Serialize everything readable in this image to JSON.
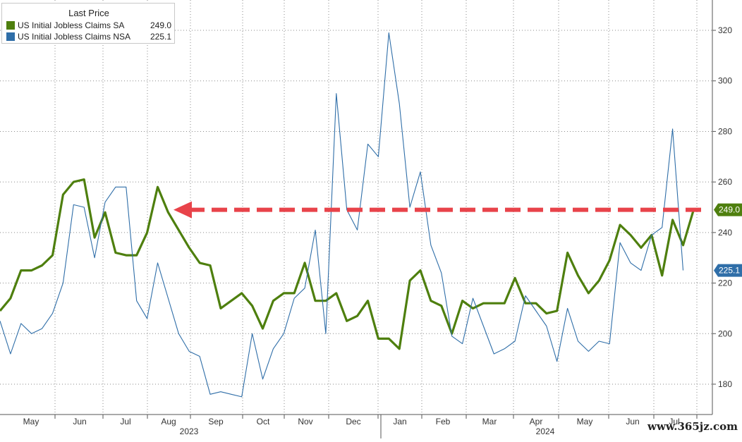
{
  "chart_data": {
    "type": "line",
    "legend": {
      "title": "Last Price",
      "entries": [
        {
          "name": "US Initial Jobless Claims SA",
          "value": "249.0",
          "color": "#4e7f0e"
        },
        {
          "name": "US Initial Jobless Claims NSA",
          "value": "225.1",
          "color": "#2f6ea8"
        }
      ]
    },
    "y_ticks": [
      180,
      200,
      220,
      240,
      260,
      280,
      300,
      320
    ],
    "ylim": [
      168,
      332
    ],
    "x_month_labels": [
      "May",
      "Jun",
      "Jul",
      "Aug",
      "Sep",
      "Oct",
      "Nov",
      "Dec",
      "Jan",
      "Feb",
      "Mar",
      "Apr",
      "May",
      "Jun",
      "Jul"
    ],
    "x_year_labels": [
      "2023",
      "2024"
    ],
    "grid": true,
    "series": [
      {
        "name": "US Initial Jobless Claims SA",
        "last_value_label": "249.0",
        "color": "#4e7f0e",
        "values": [
          209,
          214,
          225,
          225,
          227,
          231,
          255,
          260,
          261,
          238,
          248,
          232,
          231,
          231,
          240,
          258,
          248,
          241,
          234,
          228,
          227,
          210,
          213,
          216,
          211,
          202,
          213,
          216,
          216,
          228,
          213,
          213,
          216,
          205,
          207,
          213,
          198,
          198,
          194,
          221,
          225,
          213,
          211,
          200,
          213,
          210,
          212,
          212,
          212,
          222,
          212,
          212,
          208,
          209,
          232,
          223,
          216,
          221,
          229,
          243,
          239,
          234,
          239,
          223,
          245,
          235,
          249
        ]
      },
      {
        "name": "US Initial Jobless Claims NSA",
        "last_value_label": "225.1",
        "color": "#2f6ea8",
        "values": [
          205,
          192,
          204,
          200,
          202,
          208,
          220,
          251,
          250,
          230,
          252,
          258,
          258,
          213,
          206,
          228,
          214,
          200,
          193,
          191,
          176,
          177,
          176,
          175,
          200,
          182,
          194,
          200,
          214,
          218,
          241,
          200,
          295,
          249,
          241,
          275,
          270,
          319,
          291,
          250,
          264,
          235,
          224,
          199,
          196,
          214,
          203,
          192,
          194,
          197,
          215,
          209,
          203,
          189,
          210,
          197,
          193,
          197,
          196,
          236,
          228,
          225,
          239,
          242,
          281,
          225
        ]
      }
    ],
    "annotation": {
      "type": "dashed-arrow",
      "color": "#e8434a",
      "y_value": 249
    }
  },
  "watermark": "www.365jz.com"
}
